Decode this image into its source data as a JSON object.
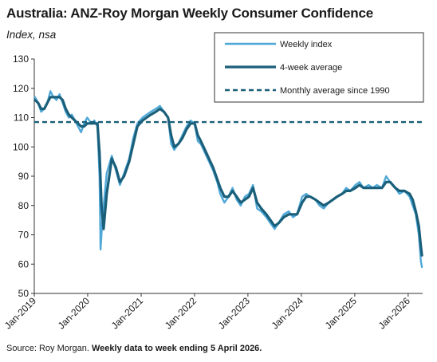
{
  "chart_data": {
    "type": "line",
    "title": "Australia: ANZ-Roy Morgan Weekly Consumer Confidence",
    "subtitle": "Index, nsa",
    "xlabel": "",
    "ylabel": "",
    "source_prefix": "Source: Roy Morgan. ",
    "source_bold": "Weekly data to week ending 5 April 2026.",
    "ylim": [
      50,
      130
    ],
    "yticks": [
      50,
      60,
      70,
      80,
      90,
      100,
      110,
      120,
      130
    ],
    "xlim": [
      "2019-01-01",
      "2026-04-10"
    ],
    "xticks": [
      {
        "date": "2019-01-01",
        "label": "Jan-2019"
      },
      {
        "date": "2020-01-01",
        "label": "Jan-2020"
      },
      {
        "date": "2021-01-01",
        "label": "Jan-2021"
      },
      {
        "date": "2022-01-01",
        "label": "Jan-2022"
      },
      {
        "date": "2023-01-01",
        "label": "Jan-2023"
      },
      {
        "date": "2024-01-01",
        "label": "Jan-2024"
      },
      {
        "date": "2025-01-01",
        "label": "Jan-2025"
      },
      {
        "date": "2026-01-01",
        "label": "Jan-2026"
      }
    ],
    "grid": false,
    "legend_position": "top-right",
    "colors": {
      "weekly": "#4fa8d8",
      "average4w": "#1a5f7a",
      "monthly": "#1a5f7a"
    },
    "series": [
      {
        "name": "Weekly index",
        "style": "solid-thin",
        "points": [
          [
            "2019-01-06",
            117
          ],
          [
            "2019-01-27",
            115
          ],
          [
            "2019-02-17",
            112
          ],
          [
            "2019-03-10",
            113
          ],
          [
            "2019-03-31",
            115
          ],
          [
            "2019-04-21",
            119
          ],
          [
            "2019-05-12",
            117
          ],
          [
            "2019-06-02",
            116
          ],
          [
            "2019-06-23",
            118
          ],
          [
            "2019-07-14",
            115
          ],
          [
            "2019-08-04",
            112
          ],
          [
            "2019-08-25",
            110
          ],
          [
            "2019-09-15",
            111
          ],
          [
            "2019-10-06",
            109
          ],
          [
            "2019-10-27",
            107
          ],
          [
            "2019-11-17",
            105
          ],
          [
            "2019-12-08",
            108
          ],
          [
            "2019-12-29",
            110
          ],
          [
            "2020-01-26",
            108
          ],
          [
            "2020-02-16",
            109
          ],
          [
            "2020-03-08",
            107
          ],
          [
            "2020-03-22",
            90
          ],
          [
            "2020-03-29",
            65
          ],
          [
            "2020-04-12",
            76
          ],
          [
            "2020-05-10",
            91
          ],
          [
            "2020-06-14",
            97
          ],
          [
            "2020-07-12",
            92
          ],
          [
            "2020-08-09",
            87
          ],
          [
            "2020-09-06",
            91
          ],
          [
            "2020-10-11",
            96
          ],
          [
            "2020-11-08",
            103
          ],
          [
            "2020-12-06",
            108
          ],
          [
            "2021-01-10",
            110
          ],
          [
            "2021-02-07",
            111
          ],
          [
            "2021-03-07",
            112
          ],
          [
            "2021-04-11",
            113
          ],
          [
            "2021-05-09",
            114
          ],
          [
            "2021-06-06",
            112
          ],
          [
            "2021-07-04",
            110
          ],
          [
            "2021-07-25",
            101
          ],
          [
            "2021-08-15",
            99
          ],
          [
            "2021-09-12",
            101
          ],
          [
            "2021-10-10",
            104
          ],
          [
            "2021-11-07",
            107
          ],
          [
            "2021-12-05",
            109
          ],
          [
            "2022-01-02",
            108
          ],
          [
            "2022-01-23",
            102
          ],
          [
            "2022-02-13",
            101
          ],
          [
            "2022-03-13",
            98
          ],
          [
            "2022-04-10",
            95
          ],
          [
            "2022-05-08",
            92
          ],
          [
            "2022-06-05",
            88
          ],
          [
            "2022-06-26",
            84
          ],
          [
            "2022-07-24",
            81
          ],
          [
            "2022-08-21",
            83
          ],
          [
            "2022-09-18",
            86
          ],
          [
            "2022-10-16",
            82
          ],
          [
            "2022-11-13",
            80
          ],
          [
            "2022-12-11",
            83
          ],
          [
            "2023-01-08",
            84
          ],
          [
            "2023-02-05",
            87
          ],
          [
            "2023-03-05",
            79
          ],
          [
            "2023-04-02",
            78
          ],
          [
            "2023-05-07",
            76
          ],
          [
            "2023-06-04",
            74
          ],
          [
            "2023-07-02",
            72
          ],
          [
            "2023-07-30",
            74
          ],
          [
            "2023-09-03",
            77
          ],
          [
            "2023-10-08",
            78
          ],
          [
            "2023-11-05",
            76
          ],
          [
            "2023-12-03",
            77
          ],
          [
            "2024-01-07",
            83
          ],
          [
            "2024-02-04",
            84
          ],
          [
            "2024-03-03",
            83
          ],
          [
            "2024-04-07",
            82
          ],
          [
            "2024-05-05",
            80
          ],
          [
            "2024-06-02",
            79
          ],
          [
            "2024-07-07",
            81
          ],
          [
            "2024-08-04",
            82
          ],
          [
            "2024-09-01",
            83
          ],
          [
            "2024-10-06",
            84
          ],
          [
            "2024-11-03",
            86
          ],
          [
            "2024-12-01",
            85
          ],
          [
            "2025-01-05",
            87
          ],
          [
            "2025-02-02",
            88
          ],
          [
            "2025-03-02",
            86
          ],
          [
            "2025-04-06",
            87
          ],
          [
            "2025-05-04",
            86
          ],
          [
            "2025-06-01",
            87
          ],
          [
            "2025-07-06",
            86
          ],
          [
            "2025-08-03",
            90
          ],
          [
            "2025-08-31",
            88
          ],
          [
            "2025-10-05",
            86
          ],
          [
            "2025-11-02",
            84
          ],
          [
            "2025-12-07",
            85
          ],
          [
            "2026-01-11",
            83
          ],
          [
            "2026-02-01",
            80
          ],
          [
            "2026-02-22",
            77
          ],
          [
            "2026-03-15",
            70
          ],
          [
            "2026-03-29",
            61
          ],
          [
            "2026-04-05",
            59
          ]
        ]
      },
      {
        "name": "4-week average",
        "style": "solid-thick",
        "points": [
          [
            "2019-01-06",
            116
          ],
          [
            "2019-01-27",
            115
          ],
          [
            "2019-02-17",
            113
          ],
          [
            "2019-03-10",
            113
          ],
          [
            "2019-03-31",
            115
          ],
          [
            "2019-04-21",
            117
          ],
          [
            "2019-05-12",
            117
          ],
          [
            "2019-06-02",
            117
          ],
          [
            "2019-06-23",
            117
          ],
          [
            "2019-07-14",
            116
          ],
          [
            "2019-08-04",
            113
          ],
          [
            "2019-08-25",
            111
          ],
          [
            "2019-09-15",
            110
          ],
          [
            "2019-10-06",
            109
          ],
          [
            "2019-10-27",
            108
          ],
          [
            "2019-11-17",
            107
          ],
          [
            "2019-12-08",
            107
          ],
          [
            "2019-12-29",
            108
          ],
          [
            "2020-01-26",
            108
          ],
          [
            "2020-02-16",
            108
          ],
          [
            "2020-03-08",
            108
          ],
          [
            "2020-03-22",
            98
          ],
          [
            "2020-04-05",
            80
          ],
          [
            "2020-04-19",
            72
          ],
          [
            "2020-05-10",
            84
          ],
          [
            "2020-06-14",
            96
          ],
          [
            "2020-07-12",
            93
          ],
          [
            "2020-08-09",
            88
          ],
          [
            "2020-09-06",
            90
          ],
          [
            "2020-10-11",
            95
          ],
          [
            "2020-11-08",
            101
          ],
          [
            "2020-12-06",
            107
          ],
          [
            "2021-01-10",
            109
          ],
          [
            "2021-02-07",
            110
          ],
          [
            "2021-03-07",
            111
          ],
          [
            "2021-04-11",
            112
          ],
          [
            "2021-05-09",
            113
          ],
          [
            "2021-06-06",
            112
          ],
          [
            "2021-07-04",
            110
          ],
          [
            "2021-07-25",
            104
          ],
          [
            "2021-08-15",
            100
          ],
          [
            "2021-09-12",
            101
          ],
          [
            "2021-10-10",
            103
          ],
          [
            "2021-11-07",
            106
          ],
          [
            "2021-12-05",
            108
          ],
          [
            "2022-01-02",
            108
          ],
          [
            "2022-01-23",
            104
          ],
          [
            "2022-02-13",
            102
          ],
          [
            "2022-03-13",
            99
          ],
          [
            "2022-04-10",
            96
          ],
          [
            "2022-05-08",
            93
          ],
          [
            "2022-06-05",
            89
          ],
          [
            "2022-06-26",
            86
          ],
          [
            "2022-07-24",
            83
          ],
          [
            "2022-08-21",
            83
          ],
          [
            "2022-09-18",
            85
          ],
          [
            "2022-10-16",
            83
          ],
          [
            "2022-11-13",
            81
          ],
          [
            "2022-12-11",
            82
          ],
          [
            "2023-01-08",
            83
          ],
          [
            "2023-02-05",
            86
          ],
          [
            "2023-03-05",
            81
          ],
          [
            "2023-04-02",
            79
          ],
          [
            "2023-05-07",
            77
          ],
          [
            "2023-06-04",
            75
          ],
          [
            "2023-07-02",
            73
          ],
          [
            "2023-07-30",
            74
          ],
          [
            "2023-09-03",
            76
          ],
          [
            "2023-10-08",
            77
          ],
          [
            "2023-11-05",
            77
          ],
          [
            "2023-12-03",
            77
          ],
          [
            "2024-01-07",
            81
          ],
          [
            "2024-02-04",
            83
          ],
          [
            "2024-03-03",
            83
          ],
          [
            "2024-04-07",
            82
          ],
          [
            "2024-05-05",
            81
          ],
          [
            "2024-06-02",
            80
          ],
          [
            "2024-07-07",
            81
          ],
          [
            "2024-08-04",
            82
          ],
          [
            "2024-09-01",
            83
          ],
          [
            "2024-10-06",
            84
          ],
          [
            "2024-11-03",
            85
          ],
          [
            "2024-12-01",
            85
          ],
          [
            "2025-01-05",
            86
          ],
          [
            "2025-02-02",
            87
          ],
          [
            "2025-03-02",
            86
          ],
          [
            "2025-04-06",
            86
          ],
          [
            "2025-05-04",
            86
          ],
          [
            "2025-06-01",
            86
          ],
          [
            "2025-07-06",
            86
          ],
          [
            "2025-08-03",
            88
          ],
          [
            "2025-08-31",
            88
          ],
          [
            "2025-10-05",
            86
          ],
          [
            "2025-11-02",
            85
          ],
          [
            "2025-12-07",
            85
          ],
          [
            "2026-01-11",
            84
          ],
          [
            "2026-02-01",
            82
          ],
          [
            "2026-02-22",
            78
          ],
          [
            "2026-03-15",
            73
          ],
          [
            "2026-03-29",
            66
          ],
          [
            "2026-04-05",
            63
          ]
        ]
      },
      {
        "name": "Monthly average since 1990",
        "style": "dashed",
        "constant": 108.5
      }
    ]
  }
}
